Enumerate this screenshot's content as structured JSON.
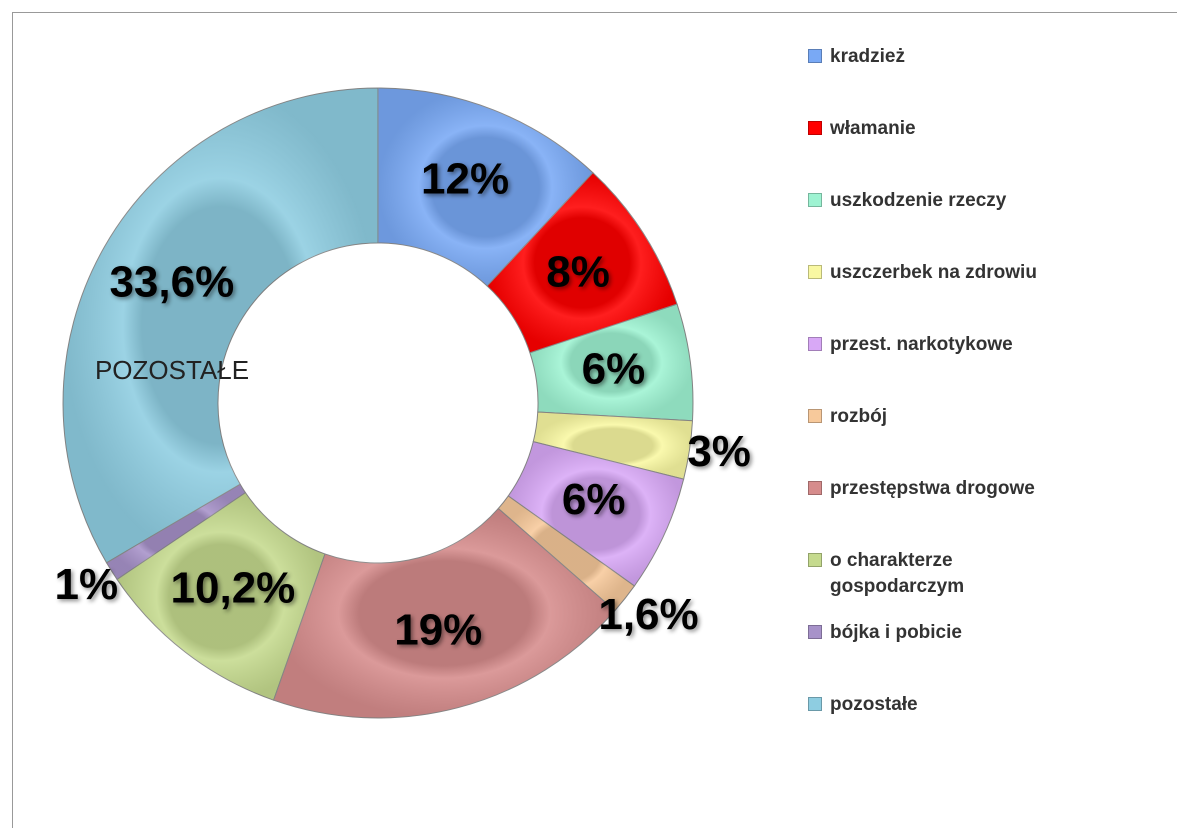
{
  "chart_data": {
    "type": "donut",
    "categories": [
      "kradzież",
      "włamanie",
      "uszkodzenie rzeczy",
      "uszczerbek na zdrowiu",
      "przest. narkotykowe",
      "rozbój",
      "przestępstwa drogowe",
      "o charakterze gospodarczym",
      "bójka i pobicie",
      "pozostałe"
    ],
    "values": [
      12,
      8,
      6,
      3,
      6,
      1.6,
      19,
      10.2,
      1,
      33.6
    ],
    "value_labels": [
      "12%",
      "8%",
      "6%",
      "3%",
      "6%",
      "1,6%",
      "19%",
      "10,2%",
      "1%",
      "33,6%"
    ],
    "colors": [
      "#79a9f5",
      "#ff0000",
      "#9ef3d2",
      "#f9f8a2",
      "#d8a8f6",
      "#f7c99b",
      "#d68c8c",
      "#c5da8e",
      "#a792c9",
      "#8ecde1"
    ],
    "annotation": "POZOSTAŁE",
    "legend": "right"
  }
}
